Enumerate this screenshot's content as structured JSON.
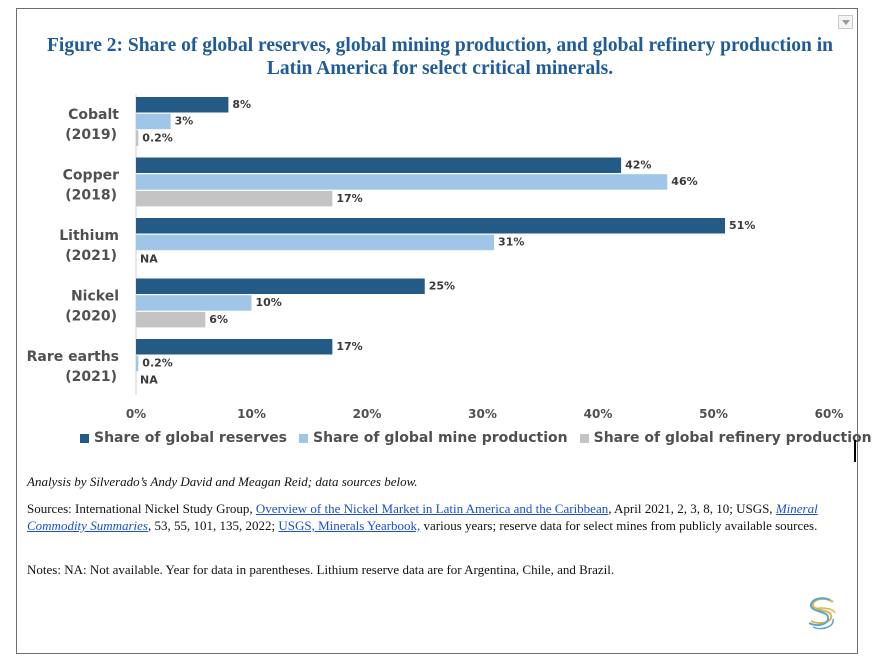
{
  "chart_data": {
    "type": "bar",
    "orientation": "horizontal",
    "title": "Figure 2: Share of global reserves, global mining production, and global refinery production in Latin America for select critical minerals.",
    "categories": [
      {
        "name": "Cobalt",
        "year": "(2019)"
      },
      {
        "name": "Copper",
        "year": "(2018)"
      },
      {
        "name": "Lithium",
        "year": "(2021)"
      },
      {
        "name": "Nickel",
        "year": "(2020)"
      },
      {
        "name": "Rare earths",
        "year": "(2021)"
      }
    ],
    "series": [
      {
        "name": "Share of global reserves",
        "color": "#245a86",
        "values": [
          8,
          42,
          51,
          25,
          17
        ],
        "labels": [
          "8%",
          "42%",
          "51%",
          "25%",
          "17%"
        ]
      },
      {
        "name": "Share of global mine production",
        "color": "#9fc6e6",
        "values": [
          3,
          46,
          31,
          10,
          0.2
        ],
        "labels": [
          "3%",
          "46%",
          "31%",
          "10%",
          "0.2%"
        ]
      },
      {
        "name": "Share of global refinery production",
        "color": "#c4c4c4",
        "values": [
          0.2,
          17,
          null,
          6,
          null
        ],
        "labels": [
          "0.2%",
          "17%",
          "NA",
          "6%",
          "NA"
        ]
      }
    ],
    "xlim": [
      0,
      60
    ],
    "xticks": [
      0,
      10,
      20,
      30,
      40,
      50,
      60
    ],
    "xtick_labels": [
      "0%",
      "10%",
      "20%",
      "30%",
      "40%",
      "50%",
      "60%"
    ],
    "legend_position": "bottom",
    "grid": false
  },
  "figure": {
    "title": "Figure 2: Share of global reserves, global mining production, and global refinery production in Latin America for select critical minerals."
  },
  "footer": {
    "analysis": "Analysis by Silverado’s Andy David and Meagan Reid; data sources below.",
    "sources_prefix": "Sources: International Nickel Study Group, ",
    "sources_link1": "Overview of the Nickel Market in Latin America and the Caribbean",
    "sources_mid1": ", April 2021, 2, 3, 8, 10; USGS, ",
    "sources_link2": "Mineral Commodity Summaries",
    "sources_mid2": ", 53, 55, 101, 135, 2022; ",
    "sources_link3": "USGS, Minerals Yearbook,",
    "sources_suffix": " various years; reserve data for select mines from publicly available sources.",
    "notes": "Notes: NA: Not available. Year for data in parentheses. Lithium reserve data are for Argentina, Chile, and Brazil."
  },
  "colors": {
    "title": "#1f5b97",
    "link": "#1a4fd0",
    "logo_gold": "#d9b54a",
    "logo_blue": "#5aa6d2"
  }
}
